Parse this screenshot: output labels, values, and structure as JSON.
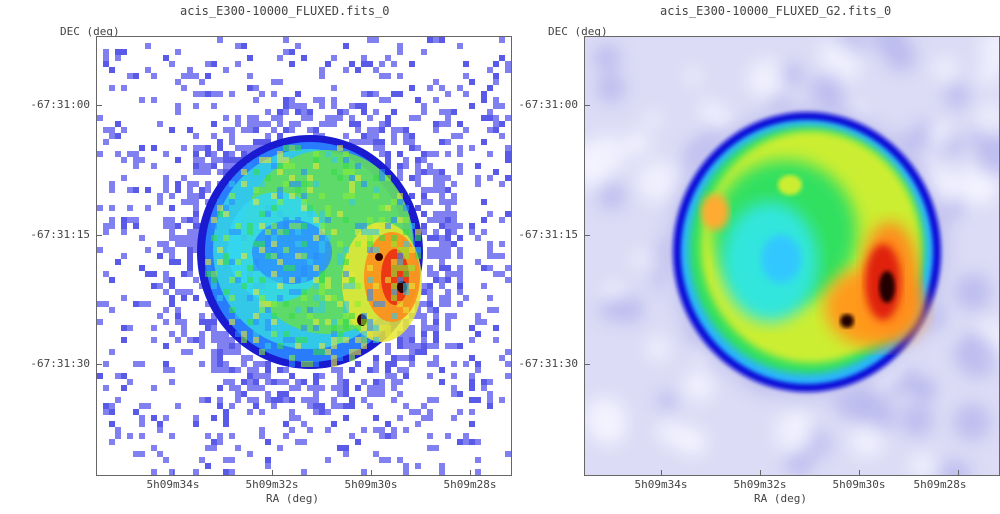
{
  "left_panel": {
    "title": "acis_E300-10000_FLUXED.fits_0",
    "dec_axis_label": "DEC (deg)",
    "ra_axis_label": "RA (deg)",
    "y_ticks": [
      "-67:31:00",
      "-67:31:15",
      "-67:31:30"
    ],
    "x_ticks": [
      "5h09m34s",
      "5h09m32s",
      "5h09m30s",
      "5h09m28s"
    ]
  },
  "right_panel": {
    "title": "acis_E300-10000_FLUXED_G2.fits_0",
    "dec_axis_label": "DEC (deg)",
    "ra_axis_label": "RA (deg)",
    "y_ticks": [
      "-67:31:00",
      "-67:31:15",
      "-67:31:30"
    ],
    "x_ticks": [
      "5h09m34s",
      "5h09m32s",
      "5h09m30s",
      "5h09m28s"
    ]
  },
  "colors": {
    "background_noise": "#7b7bef",
    "rim": "#1a1ad0",
    "blue": "#3a8cff",
    "cyan": "#33e0f0",
    "green": "#33dd44",
    "yellow": "#e8e833",
    "orange": "#ff8a1a",
    "red": "#e82010",
    "dark": "#300000"
  }
}
